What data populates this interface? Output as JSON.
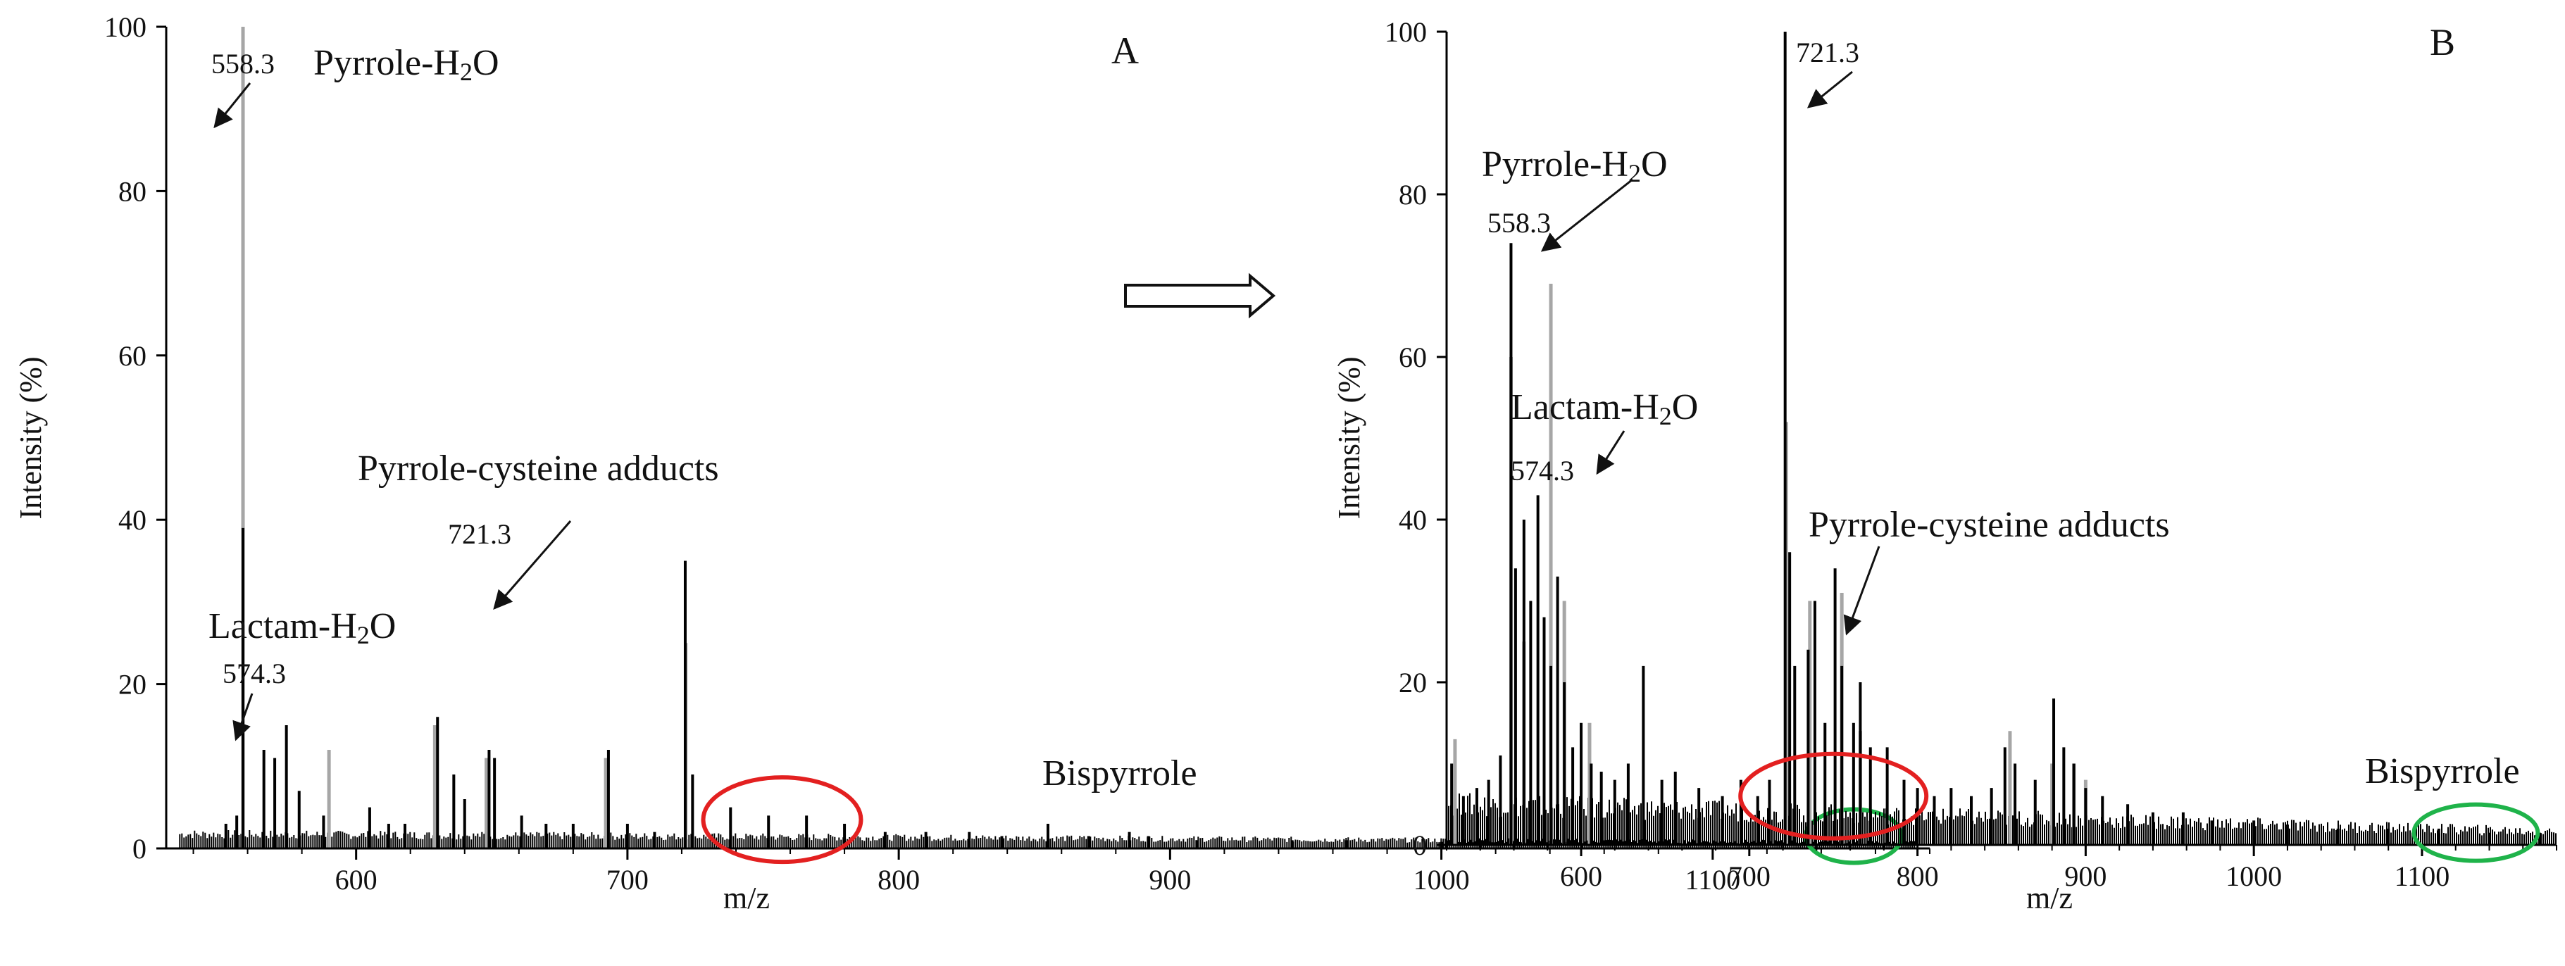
{
  "figure": {
    "process_arrow_icon": "right-arrow-icon"
  },
  "chart_data": [
    {
      "type": "line",
      "panel_label": "A",
      "xlabel": "m/z",
      "ylabel": "Intensity (%)",
      "xlim": [
        530,
        1180
      ],
      "ylim": [
        0,
        100
      ],
      "x_ticks": [
        600,
        700,
        800,
        900,
        1000,
        1100
      ],
      "y_ticks": [
        0,
        20,
        40,
        60,
        80,
        100
      ],
      "series": [
        {
          "name": "grey overlay peaks",
          "color": "#a6a6a6",
          "peaks": [
            [
              558.3,
              100
            ],
            [
              590,
              12
            ],
            [
              629,
              15
            ],
            [
              648,
              11
            ],
            [
              692,
              11
            ],
            [
              721.5,
              25
            ]
          ]
        },
        {
          "name": "black spectrum peaks",
          "color": "#000000",
          "peaks": [
            [
              552,
              3
            ],
            [
              556,
              4
            ],
            [
              558.3,
              39
            ],
            [
              566,
              12
            ],
            [
              570,
              11
            ],
            [
              574.3,
              15
            ],
            [
              579,
              7
            ],
            [
              588,
              4
            ],
            [
              605,
              5
            ],
            [
              612,
              3
            ],
            [
              618,
              3
            ],
            [
              630,
              16
            ],
            [
              636,
              9
            ],
            [
              640,
              6
            ],
            [
              649,
              12
            ],
            [
              651,
              11
            ],
            [
              661,
              4
            ],
            [
              670,
              3
            ],
            [
              680,
              3
            ],
            [
              693,
              12
            ],
            [
              700,
              3
            ],
            [
              710,
              2
            ],
            [
              721.3,
              35
            ],
            [
              724,
              9
            ],
            [
              738,
              5
            ],
            [
              752,
              4
            ],
            [
              766,
              4
            ],
            [
              780,
              3
            ],
            [
              795,
              2
            ],
            [
              810,
              2
            ],
            [
              826,
              2
            ],
            [
              838,
              1.5
            ],
            [
              855,
              3
            ],
            [
              870,
              1.5
            ],
            [
              885,
              2
            ],
            [
              892,
              1.5
            ],
            [
              910,
              1
            ],
            [
              945,
              1
            ],
            [
              965,
              1
            ],
            [
              1000,
              0.8
            ]
          ]
        }
      ],
      "baseline": {
        "start": 535,
        "end": 1175,
        "level": 1.2,
        "noise": 1.1,
        "decay_end": 0.5
      },
      "annotations": [
        {
          "mz": "558.3",
          "label": "Pyrrole-H2O"
        },
        {
          "mz": "574.3",
          "label": "Lactam-H2O"
        },
        {
          "mz": "721.3",
          "label": "Pyrrole-cysteine adducts"
        },
        {
          "label": "Bispyrrole"
        }
      ],
      "highlights": [
        {
          "name": "red-ellipse",
          "color": "#e32020",
          "center_mz": 757,
          "center_intensity": 3.5
        },
        {
          "name": "green-ellipse",
          "color": "#1fb34a",
          "center_mz": 1152,
          "center_intensity": 1.5
        }
      ]
    },
    {
      "type": "line",
      "panel_label": "B",
      "xlabel": "m/z",
      "ylabel": "Intensity (%)",
      "xlim": [
        520,
        1180
      ],
      "ylim": [
        0,
        100
      ],
      "x_ticks": [
        600,
        700,
        800,
        900,
        1000,
        1100
      ],
      "y_ticks": [
        0,
        20,
        40,
        60,
        80,
        100
      ],
      "series": [
        {
          "name": "grey overlay peaks",
          "color": "#a6a6a6",
          "peaks": [
            [
              525,
              13
            ],
            [
              558.3,
              60
            ],
            [
              566,
              25
            ],
            [
              582,
              69
            ],
            [
              590,
              30
            ],
            [
              605,
              15
            ],
            [
              722,
              52
            ],
            [
              736,
              30
            ],
            [
              755,
              31
            ],
            [
              766,
              14
            ],
            [
              855,
              14
            ],
            [
              880,
              10
            ],
            [
              893,
              10
            ],
            [
              900,
              8
            ]
          ]
        },
        {
          "name": "black spectrum peaks",
          "color": "#000000",
          "peaks": [
            [
              523,
              10
            ],
            [
              530,
              6
            ],
            [
              538,
              7
            ],
            [
              545,
              8
            ],
            [
              552,
              11
            ],
            [
              558.3,
              74
            ],
            [
              561,
              34
            ],
            [
              566,
              40
            ],
            [
              570,
              30
            ],
            [
              574.3,
              43
            ],
            [
              578,
              28
            ],
            [
              582,
              22
            ],
            [
              586,
              33
            ],
            [
              590,
              20
            ],
            [
              595,
              12
            ],
            [
              600,
              15
            ],
            [
              606,
              10
            ],
            [
              612,
              9
            ],
            [
              620,
              8
            ],
            [
              628,
              10
            ],
            [
              637,
              22
            ],
            [
              648,
              8
            ],
            [
              656,
              9
            ],
            [
              670,
              7
            ],
            [
              684,
              6
            ],
            [
              695,
              8
            ],
            [
              705,
              6
            ],
            [
              712,
              8
            ],
            [
              721.3,
              100
            ],
            [
              724,
              36
            ],
            [
              727,
              22
            ],
            [
              735,
              24
            ],
            [
              739,
              30
            ],
            [
              745,
              15
            ],
            [
              751,
              34
            ],
            [
              755,
              22
            ],
            [
              762,
              15
            ],
            [
              766,
              20
            ],
            [
              772,
              12
            ],
            [
              782,
              12
            ],
            [
              792,
              8
            ],
            [
              800,
              7
            ],
            [
              810,
              6
            ],
            [
              820,
              7
            ],
            [
              832,
              6
            ],
            [
              844,
              7
            ],
            [
              852,
              12
            ],
            [
              858,
              10
            ],
            [
              870,
              8
            ],
            [
              881,
              18
            ],
            [
              887,
              12
            ],
            [
              893,
              10
            ],
            [
              900,
              7
            ],
            [
              910,
              6
            ],
            [
              925,
              5
            ],
            [
              940,
              4
            ],
            [
              958,
              4
            ],
            [
              975,
              3
            ],
            [
              1000,
              3
            ],
            [
              1020,
              2.5
            ],
            [
              1050,
              2
            ],
            [
              1080,
              2
            ],
            [
              1110,
              2
            ],
            [
              1140,
              1.5
            ],
            [
              1170,
              1.5
            ]
          ]
        }
      ],
      "baseline": {
        "start": 520,
        "end": 1180,
        "level": 3.5,
        "noise": 3.0,
        "decay_end": 1.0
      },
      "annotations": [
        {
          "mz": "721.3"
        },
        {
          "mz": "558.3",
          "label": "Pyrrole-H2O"
        },
        {
          "mz": "574.3",
          "label": "Lactam-H2O"
        },
        {
          "label": "Pyrrole-cysteine adducts"
        },
        {
          "label": "Bispyrrole"
        }
      ],
      "highlights": [
        {
          "name": "red-ellipse",
          "color": "#e32020",
          "center_mz": 750,
          "center_intensity": 6
        },
        {
          "name": "green-ellipse",
          "color": "#1fb34a",
          "center_mz": 1132,
          "center_intensity": 1.5
        }
      ]
    }
  ]
}
